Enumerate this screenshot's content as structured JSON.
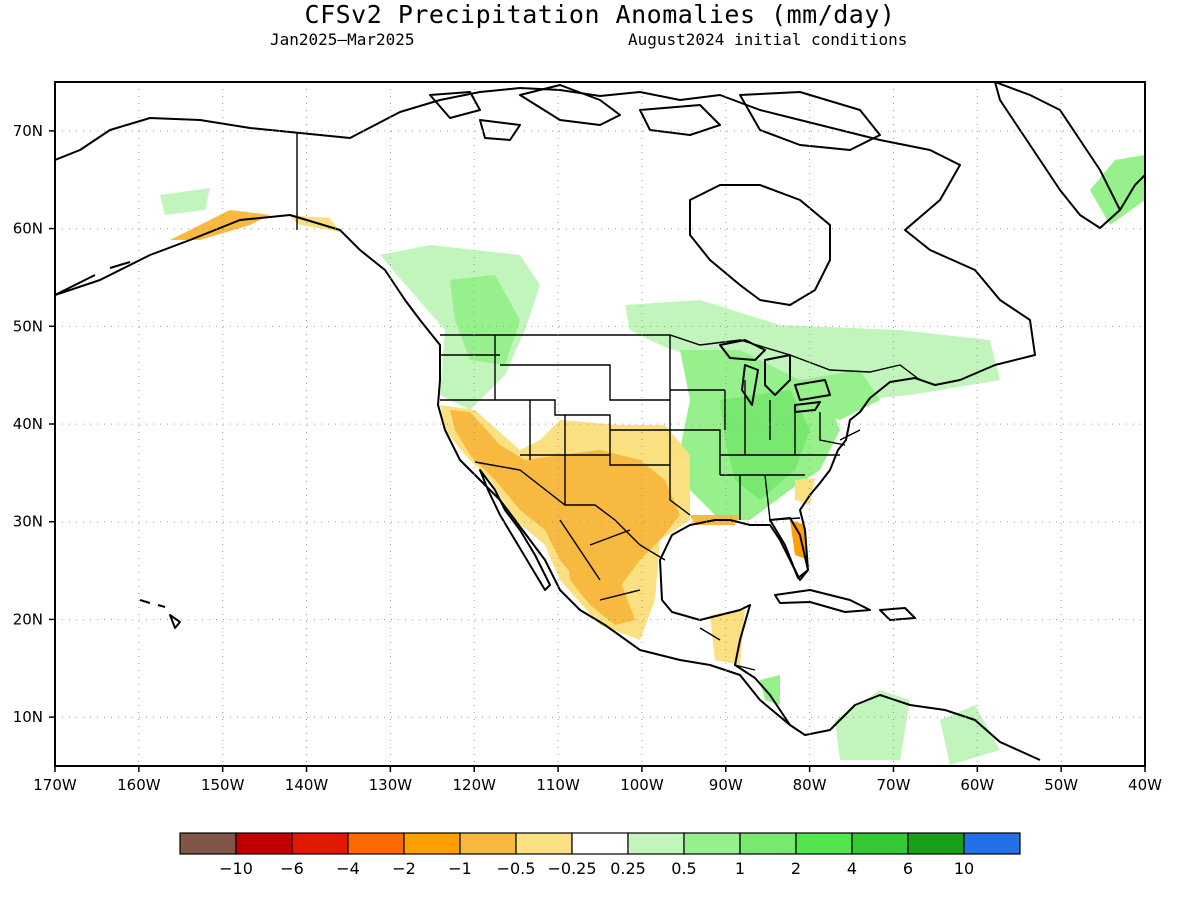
{
  "title": "CFSv2 Precipitation Anomalies (mm/day)",
  "subtitle_left": "Jan2025–Mar2025",
  "subtitle_right": "August2024 initial conditions",
  "map": {
    "lon_range": [
      -170,
      -40
    ],
    "lat_range": [
      5,
      75
    ],
    "lon_ticks": [
      "170W",
      "160W",
      "150W",
      "140W",
      "130W",
      "120W",
      "110W",
      "100W",
      "90W",
      "80W",
      "70W",
      "60W",
      "50W",
      "40W"
    ],
    "lat_ticks": [
      "10N",
      "20N",
      "30N",
      "40N",
      "50N",
      "60N",
      "70N"
    ],
    "grid": "dotted"
  },
  "colorbar": {
    "colors": [
      "#7f5648",
      "#c00000",
      "#e01a00",
      "#ff6a00",
      "#ff9f00",
      "#f7b940",
      "#fbe081",
      "#ffffff",
      "#c2f5bb",
      "#96f08b",
      "#78e871",
      "#52e64c",
      "#34c934",
      "#18a018",
      "#2271e8"
    ],
    "labels": [
      "−10",
      "−6",
      "−4",
      "−2",
      "−1",
      "−0.5",
      "−0.25",
      "0.25",
      "0.5",
      "1",
      "2",
      "4",
      "6",
      "10"
    ]
  },
  "legend_colors": {
    "dry_moderate": "#f7b940",
    "dry_light": "#fbe081",
    "dry_strong": "#ff9f00",
    "wet_light": "#c2f5bb",
    "wet_moderate": "#96f08b",
    "wet_strong": "#78e871"
  }
}
